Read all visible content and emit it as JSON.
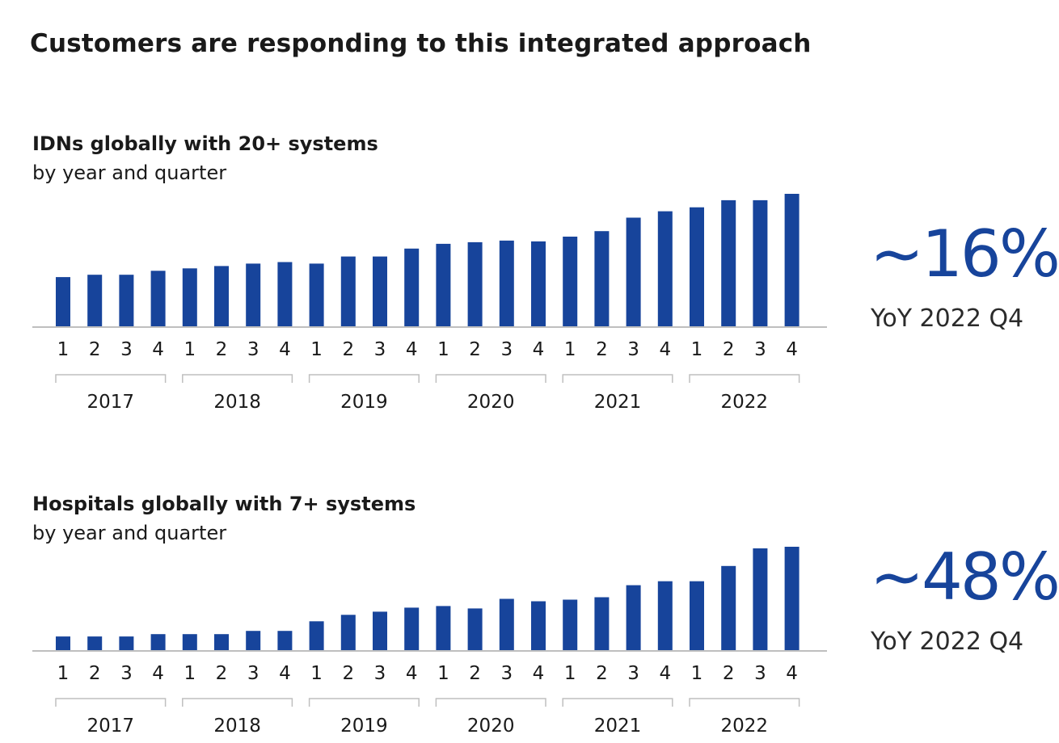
{
  "page": {
    "title": "Customers are responding to this integrated approach"
  },
  "colors": {
    "bar": "#17449b",
    "axis": "#bfbfbf",
    "bracket": "#bfbfbf",
    "kpi": "#17449b"
  },
  "chart_data": [
    {
      "type": "bar",
      "title": "IDNs globally with 20+ systems",
      "subtitle": "by year and quarter",
      "categories": [
        "1",
        "2",
        "3",
        "4",
        "1",
        "2",
        "3",
        "4",
        "1",
        "2",
        "3",
        "4",
        "1",
        "2",
        "3",
        "4",
        "1",
        "2",
        "3",
        "4",
        "1",
        "2",
        "3",
        "4"
      ],
      "groups": [
        {
          "label": "2017",
          "quarters": [
            "1",
            "2",
            "3",
            "4"
          ]
        },
        {
          "label": "2018",
          "quarters": [
            "1",
            "2",
            "3",
            "4"
          ]
        },
        {
          "label": "2019",
          "quarters": [
            "1",
            "2",
            "3",
            "4"
          ]
        },
        {
          "label": "2020",
          "quarters": [
            "1",
            "2",
            "3",
            "4"
          ]
        },
        {
          "label": "2021",
          "quarters": [
            "1",
            "2",
            "3",
            "4"
          ]
        },
        {
          "label": "2022",
          "quarters": [
            "1",
            "2",
            "3",
            "4"
          ]
        }
      ],
      "values": [
        63,
        66,
        66,
        71,
        74,
        77,
        80,
        82,
        80,
        89,
        89,
        99,
        105,
        107,
        109,
        108,
        114,
        121,
        138,
        146,
        151,
        160,
        160,
        168
      ],
      "ylim": [
        0,
        168
      ],
      "grid": false,
      "kpi": {
        "value": "~16%",
        "label": "YoY 2022 Q4"
      }
    },
    {
      "type": "bar",
      "title": "Hospitals globally with 7+ systems",
      "subtitle": "by year and quarter",
      "categories": [
        "1",
        "2",
        "3",
        "4",
        "1",
        "2",
        "3",
        "4",
        "1",
        "2",
        "3",
        "4",
        "1",
        "2",
        "3",
        "4",
        "1",
        "2",
        "3",
        "4",
        "1",
        "2",
        "3",
        "4"
      ],
      "groups": [
        {
          "label": "2017",
          "quarters": [
            "1",
            "2",
            "3",
            "4"
          ]
        },
        {
          "label": "2018",
          "quarters": [
            "1",
            "2",
            "3",
            "4"
          ]
        },
        {
          "label": "2019",
          "quarters": [
            "1",
            "2",
            "3",
            "4"
          ]
        },
        {
          "label": "2020",
          "quarters": [
            "1",
            "2",
            "3",
            "4"
          ]
        },
        {
          "label": "2021",
          "quarters": [
            "1",
            "2",
            "3",
            "4"
          ]
        },
        {
          "label": "2022",
          "quarters": [
            "1",
            "2",
            "3",
            "4"
          ]
        }
      ],
      "values": [
        18,
        18,
        18,
        21,
        21,
        21,
        25,
        25,
        37,
        45,
        49,
        54,
        56,
        53,
        65,
        62,
        64,
        67,
        82,
        87,
        87,
        106,
        128,
        130
      ],
      "ylim": [
        0,
        130
      ],
      "grid": false,
      "kpi": {
        "value": "~48%",
        "label": "YoY 2022 Q4"
      }
    }
  ]
}
